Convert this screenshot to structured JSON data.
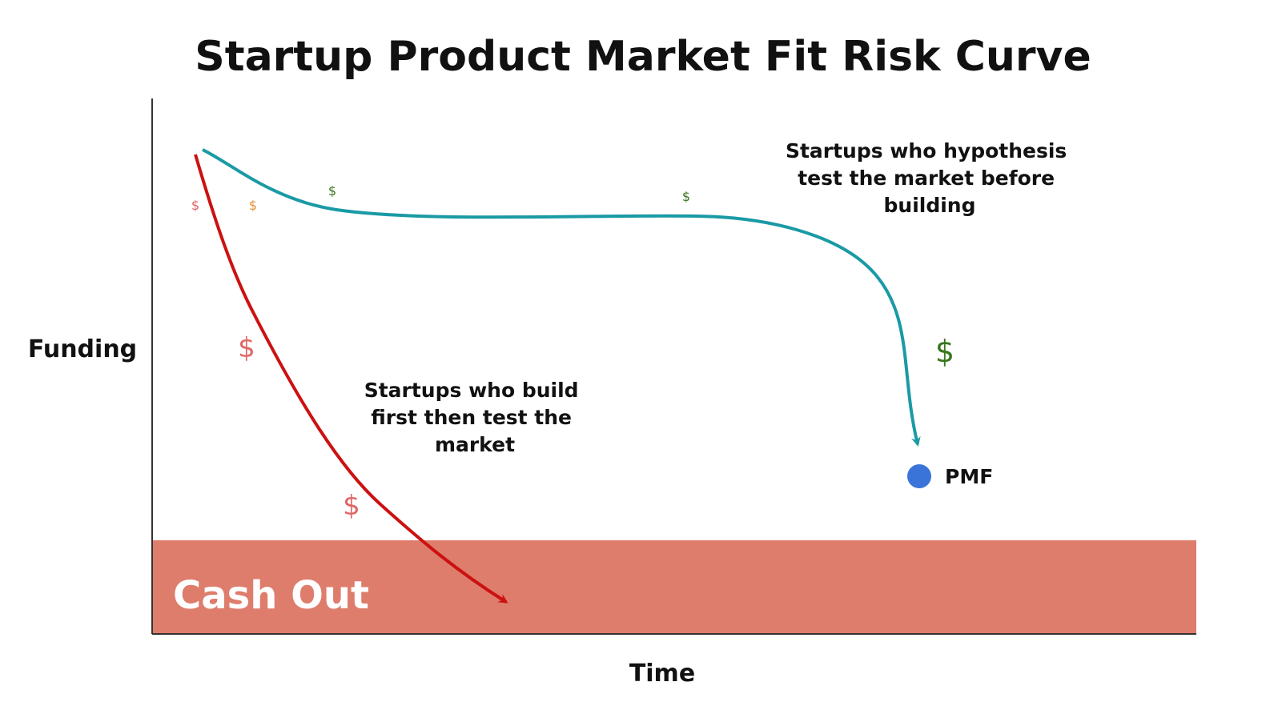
{
  "title": "Startup Product Market Fit Risk Curve",
  "axes": {
    "y_label": "Funding",
    "x_label": "Time"
  },
  "zone": {
    "label": "Cash Out",
    "color": "#de7d6c"
  },
  "curves": {
    "build_first": {
      "label_lines": [
        "Startups who build",
        "first then test the",
        "market"
      ],
      "color": "#cc1111"
    },
    "test_first": {
      "label_lines": [
        "Startups who hypothesis",
        "test the market before",
        "building"
      ],
      "color": "#1a9aa5"
    }
  },
  "milestone": {
    "label": "PMF",
    "color": "#3b74d9"
  },
  "dollar_symbol": "$",
  "colors": {
    "dollar_red": "#e06666",
    "dollar_orange": "#e69138",
    "dollar_green": "#38761d",
    "axis": "#333333"
  }
}
